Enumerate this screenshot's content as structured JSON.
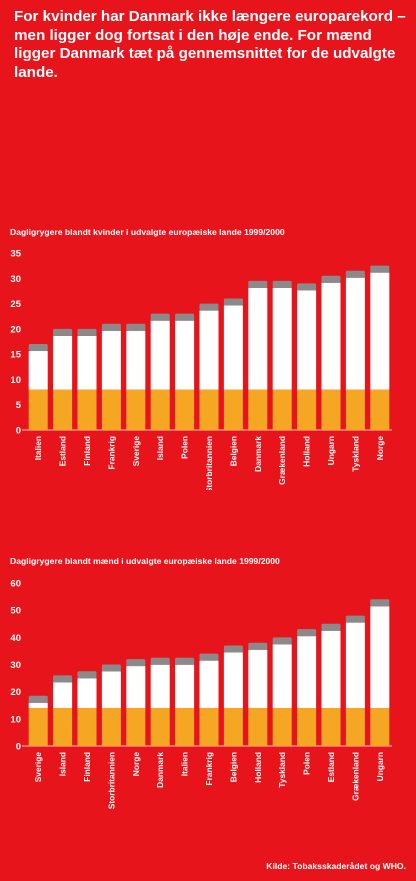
{
  "headline": "For kvinder har Danmark ikke længere europarekord – men ligger dog fortsat i den høje ende. For mænd ligger Danmark tæt på gennemsnittet for de udvalgte lande.",
  "source": "Kilde: Tobaksskaderådet og WHO.",
  "colors": {
    "background": "#e8141c",
    "filter": "#f5a623",
    "paper": "#ffffff",
    "ash": "#8a8a8a"
  },
  "chart_data": [
    {
      "type": "bar",
      "title": "Dagligrygere blandt kvinder i udvalgte europæiske lande 1999/2000",
      "categories": [
        "Italien",
        "Estland",
        "Finland",
        "Frankrig",
        "Sverige",
        "Island",
        "Polen",
        "Storbritannien",
        "Belgien",
        "Danmark",
        "Grækenland",
        "Holland",
        "Ungarn",
        "Tyskland",
        "Norge"
      ],
      "values": [
        17,
        20,
        20,
        21,
        21,
        23,
        23,
        25,
        26,
        29.5,
        29.5,
        29,
        30.5,
        31.5,
        32.5
      ],
      "yticks": [
        0,
        5,
        10,
        15,
        20,
        25,
        30,
        35
      ],
      "ylim": [
        0,
        35
      ],
      "filter_level": 8,
      "grid": false
    },
    {
      "type": "bar",
      "title": "Dagligrygere blandt mænd i udvalgte europæiske lande 1999/2000",
      "categories": [
        "Sverige",
        "Island",
        "Finland",
        "Storbritannien",
        "Norge",
        "Danmark",
        "Italien",
        "Frankrig",
        "Belgien",
        "Holland",
        "Tyskland",
        "Polen",
        "Estland",
        "Grækenland",
        "Ungarn"
      ],
      "values": [
        18.5,
        26,
        27.5,
        30,
        32,
        32.5,
        32.5,
        34,
        37,
        38,
        40,
        43,
        45,
        48,
        54
      ],
      "yticks": [
        0,
        10,
        20,
        30,
        40,
        50,
        60
      ],
      "ylim": [
        0,
        60
      ],
      "filter_level": 14,
      "grid": false
    }
  ]
}
